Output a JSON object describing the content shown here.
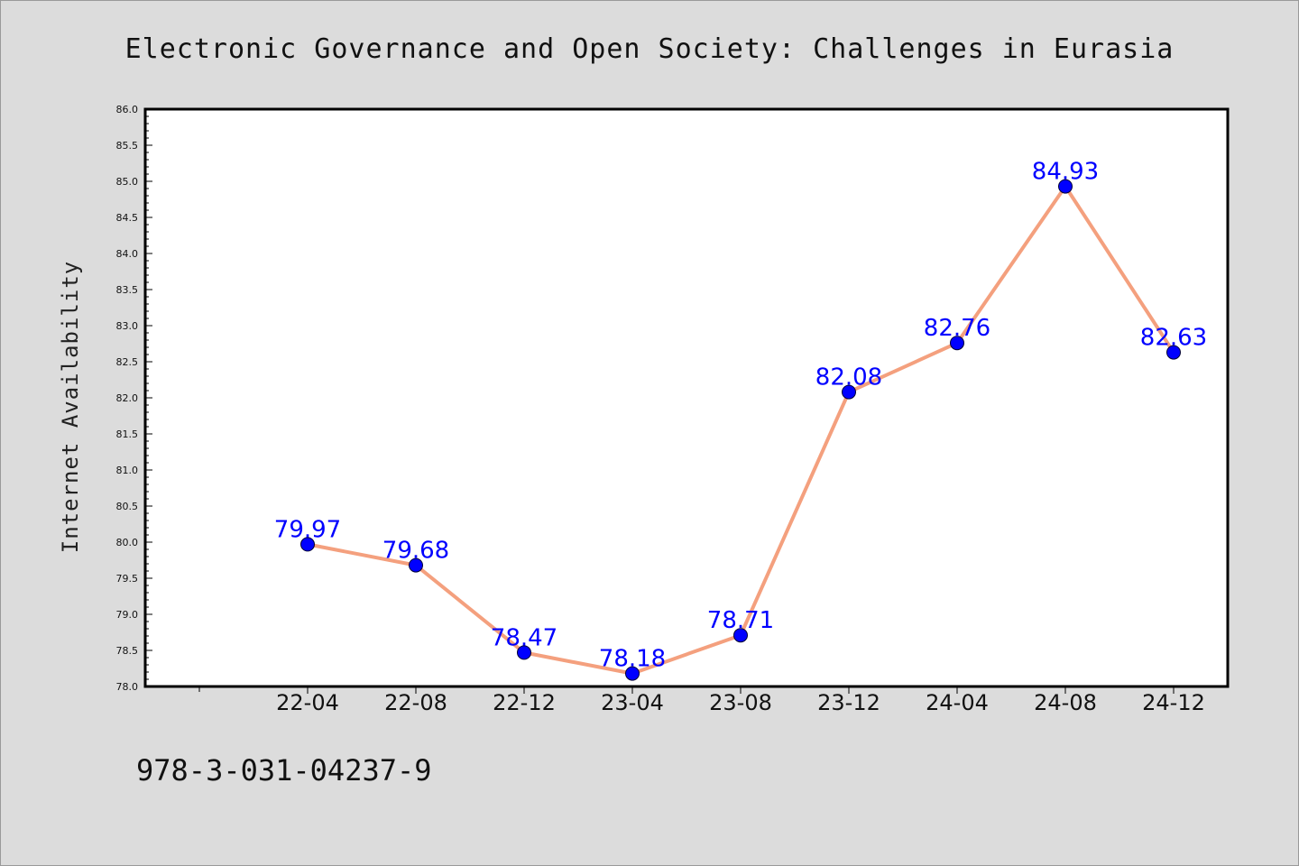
{
  "chart_data": {
    "type": "line",
    "title": "Electronic Governance and Open Society: Challenges in Eurasia",
    "xlabel": "",
    "ylabel": "Internet Availability",
    "categories": [
      "22-04",
      "22-08",
      "22-12",
      "23-04",
      "23-08",
      "23-12",
      "24-04",
      "24-08",
      "24-12"
    ],
    "series": [
      {
        "values": [
          79.97,
          79.68,
          78.47,
          78.18,
          78.71,
          82.08,
          82.76,
          84.93,
          82.63
        ]
      }
    ],
    "data_labels": [
      "79.97",
      "79.68",
      "78.47",
      "78.18",
      "78.71",
      "82.08",
      "82.76",
      "84.93",
      "82.63"
    ],
    "ylim": [
      78.0,
      86.0
    ],
    "y_ticks": [
      "78.0",
      "78.5",
      "79.0",
      "79.5",
      "80.0",
      "80.5",
      "81.0",
      "81.5",
      "82.0",
      "82.5",
      "83.0",
      "83.5",
      "84.0",
      "84.5",
      "85.0",
      "85.5",
      "86.0"
    ],
    "grid": false,
    "legend": "none",
    "colors": {
      "line": "#f4a07e",
      "marker": "#0000ff",
      "label": "#0000ff",
      "page_background": "#dcdcdc",
      "plot_background": "#ffffff"
    }
  },
  "footer": {
    "text": "978-3-031-04237-9"
  }
}
